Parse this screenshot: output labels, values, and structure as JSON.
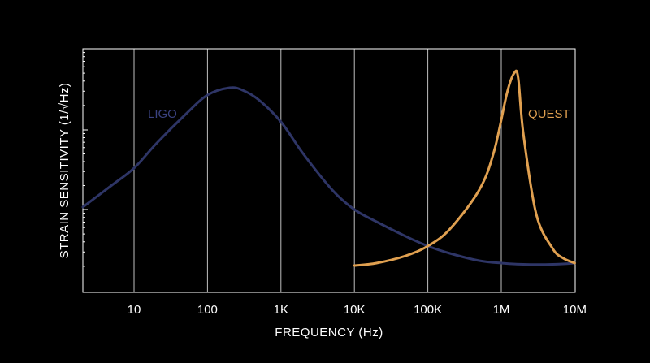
{
  "chart_data": {
    "type": "line",
    "xlabel": "FREQUENCY (Hz)",
    "ylabel": "STRAIN SENSITIVITY (1/√Hz)",
    "x_scale": "log",
    "xlim": [
      "2",
      "10M"
    ],
    "x_tick_labels": [
      "10",
      "100",
      "1K",
      "10K",
      "100K",
      "1M",
      "10M"
    ],
    "grid": "vertical lines at each decade",
    "y_tick_labels": [],
    "series": [
      {
        "name": "LIGO",
        "color": "#2e3566",
        "x": [
          "2",
          "5",
          "10",
          "20",
          "50",
          "100",
          "200",
          "300",
          "500",
          "1K",
          "2K",
          "5K",
          "10K",
          "20K",
          "50K",
          "100K",
          "200K",
          "500K",
          "1M",
          "2M",
          "5M",
          "10M"
        ],
        "relative_level": [
          0.35,
          0.44,
          0.51,
          0.61,
          0.73,
          0.81,
          0.84,
          0.83,
          0.79,
          0.7,
          0.57,
          0.42,
          0.34,
          0.29,
          0.23,
          0.19,
          0.16,
          0.13,
          0.12,
          0.115,
          0.115,
          0.12
        ]
      },
      {
        "name": "QUEST",
        "color": "#e0a050",
        "x": [
          "10K",
          "20K",
          "50K",
          "100K",
          "200K",
          "500K",
          "800K",
          "1.2M",
          "1.5M",
          "1.7M",
          "2M",
          "3M",
          "5M",
          "7M",
          "10M"
        ],
        "relative_level": [
          0.11,
          0.12,
          0.15,
          0.19,
          0.26,
          0.42,
          0.58,
          0.82,
          0.9,
          0.88,
          0.65,
          0.32,
          0.18,
          0.14,
          0.12
        ]
      }
    ]
  }
}
